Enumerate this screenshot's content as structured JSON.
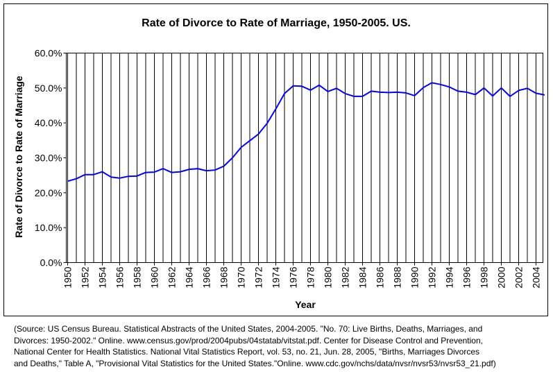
{
  "chart_data": {
    "type": "line",
    "title": "Rate of Divorce to Rate of Marriage, 1950-2005. US.",
    "xlabel": "Year",
    "ylabel": "Rate of Divorce to Rate of Marriage",
    "xlim": [
      1950,
      2005
    ],
    "ylim": [
      0,
      60
    ],
    "y_ticks": [
      "0.0%",
      "10.0%",
      "20.0%",
      "30.0%",
      "40.0%",
      "50.0%",
      "60.0%"
    ],
    "x_ticks": [
      "1950",
      "1952",
      "1954",
      "1956",
      "1958",
      "1960",
      "1962",
      "1964",
      "1966",
      "1968",
      "1970",
      "1972",
      "1974",
      "1976",
      "1978",
      "1980",
      "1982",
      "1984",
      "1986",
      "1988",
      "1990",
      "1992",
      "1994",
      "1996",
      "1998",
      "2000",
      "2002",
      "2004"
    ],
    "grid": "vertical",
    "line_color": "#0000ff",
    "series": [
      {
        "x": [
          1950,
          1951,
          1952,
          1953,
          1954,
          1955,
          1956,
          1957,
          1958,
          1959,
          1960,
          1961,
          1962,
          1963,
          1964,
          1965,
          1966,
          1967,
          1968,
          1969,
          1970,
          1971,
          1972,
          1973,
          1974,
          1975,
          1976,
          1977,
          1978,
          1979,
          1980,
          1981,
          1982,
          1983,
          1984,
          1985,
          1986,
          1987,
          1988,
          1989,
          1990,
          1991,
          1992,
          1993,
          1994,
          1995,
          1996,
          1997,
          1998,
          1999,
          2000,
          2001,
          2002,
          2003,
          2004,
          2005
        ],
        "values": [
          23.3,
          24.0,
          25.2,
          25.2,
          26.0,
          24.5,
          24.2,
          24.7,
          24.8,
          25.8,
          25.9,
          26.9,
          25.8,
          26.0,
          26.7,
          26.9,
          26.3,
          26.5,
          27.6,
          30.0,
          33.0,
          34.9,
          36.8,
          39.9,
          44.0,
          48.4,
          50.6,
          50.5,
          49.4,
          50.8,
          49.0,
          49.9,
          48.4,
          47.6,
          47.6,
          49.1,
          48.8,
          48.7,
          48.8,
          48.6,
          47.8,
          50.1,
          51.5,
          51.0,
          50.3,
          49.1,
          48.8,
          48.1,
          50.0,
          47.7,
          50.0,
          47.6,
          49.3,
          49.9,
          48.5,
          48.0
        ]
      }
    ]
  },
  "source_lines": [
    "(Source: US Census Bureau. Statistical Abstracts of the United States, 2004-2005. \"No. 70: Live Births, Deaths, Marriages, and",
    "Divorces: 1950-2002.\" Online. www.census.gov/prod/2004pubs/04statab/vitstat.pdf. Center for Disease Control and Prevention,",
    "National Center for Health Statistics. National Vital Statistics Report, vol. 53, no. 21, Jun. 28, 2005, \"Births, Marriages Divorces",
    "and Deaths,\" Table A, \"Provisional Vital Statistics for the United States.\"Online. www.cdc.gov/nchs/data/nvsr/nvsr53/nvsr53_21.pdf)"
  ]
}
